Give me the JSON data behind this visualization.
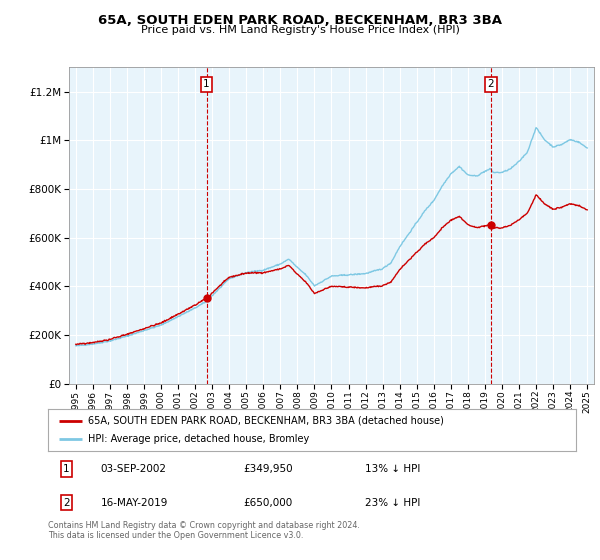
{
  "title": "65A, SOUTH EDEN PARK ROAD, BECKENHAM, BR3 3BA",
  "subtitle": "Price paid vs. HM Land Registry's House Price Index (HPI)",
  "legend_line1": "65A, SOUTH EDEN PARK ROAD, BECKENHAM, BR3 3BA (detached house)",
  "legend_line2": "HPI: Average price, detached house, Bromley",
  "annotation1_date": "03-SEP-2002",
  "annotation1_price": "£349,950",
  "annotation1_pct": "13% ↓ HPI",
  "annotation2_date": "16-MAY-2019",
  "annotation2_price": "£650,000",
  "annotation2_pct": "23% ↓ HPI",
  "footer": "Contains HM Land Registry data © Crown copyright and database right 2024.\nThis data is licensed under the Open Government Licence v3.0.",
  "hpi_color": "#7ec8e3",
  "price_color": "#cc0000",
  "vline_color": "#cc0000",
  "chart_bg": "#e8f4fb",
  "background_color": "#ffffff",
  "grid_color": "#ffffff",
  "ylim": [
    0,
    1300000
  ],
  "yticks": [
    0,
    200000,
    400000,
    600000,
    800000,
    1000000,
    1200000
  ],
  "ytick_labels": [
    "£0",
    "£200K",
    "£400K",
    "£600K",
    "£800K",
    "£1M",
    "£1.2M"
  ]
}
